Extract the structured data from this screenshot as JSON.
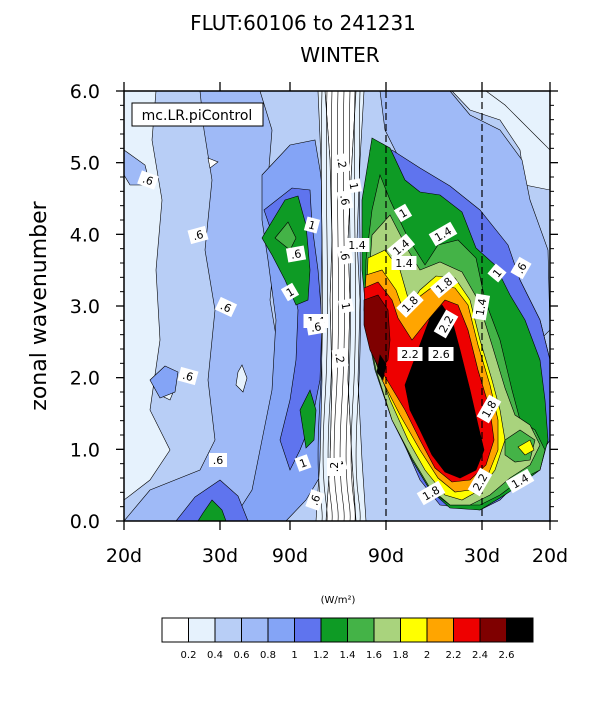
{
  "chart_data": {
    "type": "contour",
    "title_line1": "FLUT:60106 to 241231",
    "title_line2": "WINTER",
    "label": "mc.LR.piControl",
    "ylabel": "zonal wavenumber",
    "ylim": [
      0.0,
      6.0
    ],
    "yticks": [
      "0.0",
      "1.0",
      "2.0",
      "3.0",
      "4.0",
      "5.0",
      "6.0"
    ],
    "xticks": [
      "20d",
      "30d",
      "90d",
      "90d",
      "30d",
      "20d"
    ],
    "colorbar_unit": "(W/m²)",
    "levels": [
      "0.2",
      "0.4",
      "0.6",
      "0.8",
      "1",
      "1.2",
      "1.4",
      "1.6",
      "1.8",
      "2",
      "2.2",
      "2.4",
      "2.6"
    ],
    "colors": [
      "#ffffff",
      "#e6f2fd",
      "#b8cef6",
      "#9fbaf7",
      "#84a4f6",
      "#5f74ee",
      "#0e9b25",
      "#44b347",
      "#a9d37d",
      "#ffff00",
      "#ffa500",
      "#ee0000",
      "#7f0000",
      "#000000"
    ],
    "contour_labels": [
      ".6",
      ".6",
      ".6",
      ".6",
      ".6",
      "1",
      ".6",
      "1",
      "1.4",
      ".6",
      ".2",
      ".6",
      "1",
      ".6",
      "1",
      ".2",
      "1",
      "1.4",
      "1.4",
      "1.8",
      "1.4",
      "1.8",
      "2.2",
      "2.2",
      "2.6",
      "1.4",
      "1",
      ".6",
      "1.4",
      "1.8",
      "2.2",
      "1.8",
      "1.4",
      ".2",
      "1",
      "1",
      ".6"
    ]
  }
}
